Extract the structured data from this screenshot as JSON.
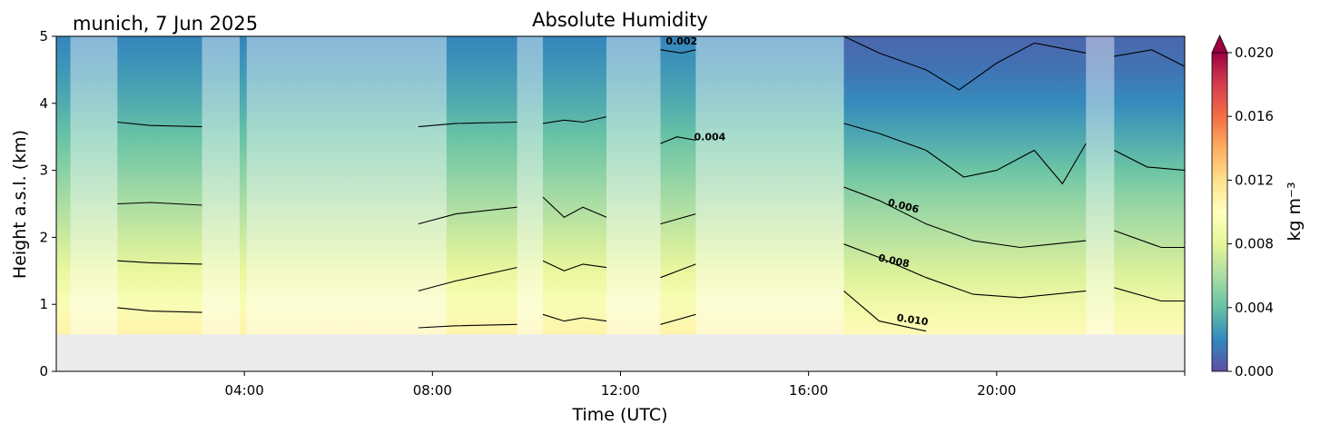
{
  "header": {
    "location_date": "munich, 7 Jun 2025"
  },
  "chart_data": {
    "type": "heatmap",
    "title": "Absolute Humidity",
    "xlabel": "Time (UTC)",
    "ylabel": "Height a.s.l. (km)",
    "xlim_hours": [
      0,
      24
    ],
    "ylim_km": [
      0,
      5
    ],
    "x_ticks": [
      {
        "hour": 4,
        "label": "04:00"
      },
      {
        "hour": 8,
        "label": "08:00"
      },
      {
        "hour": 12,
        "label": "12:00"
      },
      {
        "hour": 16,
        "label": "16:00"
      },
      {
        "hour": 20,
        "label": "20:00"
      }
    ],
    "y_ticks": [
      {
        "value": 0,
        "label": "0"
      },
      {
        "value": 1,
        "label": "1"
      },
      {
        "value": 2,
        "label": "2"
      },
      {
        "value": 3,
        "label": "3"
      },
      {
        "value": 4,
        "label": "4"
      },
      {
        "value": 5,
        "label": "5"
      }
    ],
    "data_bottom_km": 0.55,
    "no_data_color": "#ebebeb",
    "colorbar": {
      "label": "kg m⁻³",
      "min": 0.0,
      "max": 0.02,
      "extend": "max",
      "ticks": [
        {
          "value": 0.0,
          "label": "0.000"
        },
        {
          "value": 0.004,
          "label": "0.004"
        },
        {
          "value": 0.008,
          "label": "0.008"
        },
        {
          "value": 0.012,
          "label": "0.012"
        },
        {
          "value": 0.016,
          "label": "0.016"
        },
        {
          "value": 0.02,
          "label": "0.020"
        }
      ],
      "colormap": "Spectral_r",
      "colors": [
        "#5e4fa2",
        "#3288bd",
        "#66c2a5",
        "#abdda4",
        "#e6f598",
        "#ffffbf",
        "#fee08b",
        "#fdae61",
        "#f46d43",
        "#d53e4f",
        "#9e0142"
      ],
      "over_color": "#9e0142"
    },
    "humidity_profile_kgm3": {
      "heights_km": [
        0.55,
        1.0,
        1.5,
        2.0,
        2.5,
        3.0,
        3.5,
        4.0,
        4.5,
        5.0
      ],
      "clear_period": [
        0.0108,
        0.0095,
        0.0083,
        0.0071,
        0.006,
        0.005,
        0.0041,
        0.0032,
        0.0025,
        0.0019
      ],
      "evening": [
        0.0103,
        0.0088,
        0.0076,
        0.0064,
        0.0054,
        0.0042,
        0.0031,
        0.0021,
        0.0013,
        0.0008
      ]
    },
    "shaded_periods_hours": [
      [
        0.3,
        1.3
      ],
      [
        3.1,
        3.9
      ],
      [
        4.05,
        8.3
      ],
      [
        9.8,
        10.35
      ],
      [
        11.7,
        12.85
      ],
      [
        13.6,
        16.75
      ],
      [
        21.9,
        22.5
      ]
    ],
    "contour_levels": [
      {
        "value": 0.002,
        "label": "0.002"
      },
      {
        "value": 0.004,
        "label": "0.004"
      },
      {
        "value": 0.006,
        "label": "0.006"
      },
      {
        "value": 0.008,
        "label": "0.008"
      },
      {
        "value": 0.01,
        "label": "0.010"
      }
    ],
    "contour_lines": [
      {
        "level": 0.004,
        "points": [
          [
            1.3,
            3.72
          ],
          [
            2.0,
            3.67
          ],
          [
            3.1,
            3.65
          ]
        ]
      },
      {
        "level": 0.004,
        "points": [
          [
            7.7,
            3.65
          ],
          [
            8.5,
            3.7
          ],
          [
            9.8,
            3.72
          ]
        ]
      },
      {
        "level": 0.004,
        "points": [
          [
            10.35,
            3.7
          ],
          [
            10.8,
            3.75
          ],
          [
            11.2,
            3.72
          ],
          [
            11.7,
            3.8
          ]
        ]
      },
      {
        "level": 0.004,
        "points": [
          [
            12.85,
            3.4
          ],
          [
            13.2,
            3.5
          ],
          [
            13.6,
            3.45
          ]
        ]
      },
      {
        "level": 0.004,
        "points": [
          [
            16.75,
            3.7
          ],
          [
            17.5,
            3.55
          ],
          [
            18.5,
            3.3
          ],
          [
            19.3,
            2.9
          ],
          [
            20.0,
            3.0
          ],
          [
            20.8,
            3.3
          ],
          [
            21.4,
            2.8
          ],
          [
            21.9,
            3.4
          ]
        ]
      },
      {
        "level": 0.004,
        "points": [
          [
            22.5,
            3.3
          ],
          [
            23.2,
            3.05
          ],
          [
            24.0,
            3.0
          ]
        ]
      },
      {
        "level": 0.006,
        "points": [
          [
            1.3,
            2.5
          ],
          [
            2.0,
            2.52
          ],
          [
            3.1,
            2.48
          ]
        ]
      },
      {
        "level": 0.006,
        "points": [
          [
            7.7,
            2.2
          ],
          [
            8.5,
            2.35
          ],
          [
            9.8,
            2.45
          ]
        ]
      },
      {
        "level": 0.006,
        "points": [
          [
            10.35,
            2.6
          ],
          [
            10.8,
            2.3
          ],
          [
            11.2,
            2.45
          ],
          [
            11.7,
            2.3
          ]
        ]
      },
      {
        "level": 0.006,
        "points": [
          [
            12.85,
            2.2
          ],
          [
            13.6,
            2.35
          ]
        ]
      },
      {
        "level": 0.006,
        "points": [
          [
            16.75,
            2.75
          ],
          [
            17.5,
            2.55
          ],
          [
            18.5,
            2.2
          ],
          [
            19.5,
            1.95
          ],
          [
            20.5,
            1.85
          ],
          [
            21.9,
            1.95
          ]
        ]
      },
      {
        "level": 0.006,
        "points": [
          [
            22.5,
            2.1
          ],
          [
            23.5,
            1.85
          ],
          [
            24.0,
            1.85
          ]
        ]
      },
      {
        "level": 0.008,
        "points": [
          [
            1.3,
            1.65
          ],
          [
            2.0,
            1.62
          ],
          [
            3.1,
            1.6
          ]
        ]
      },
      {
        "level": 0.008,
        "points": [
          [
            7.7,
            1.2
          ],
          [
            8.5,
            1.35
          ],
          [
            9.8,
            1.55
          ]
        ]
      },
      {
        "level": 0.008,
        "points": [
          [
            10.35,
            1.65
          ],
          [
            10.8,
            1.5
          ],
          [
            11.2,
            1.6
          ],
          [
            11.7,
            1.55
          ]
        ]
      },
      {
        "level": 0.008,
        "points": [
          [
            12.85,
            1.4
          ],
          [
            13.6,
            1.6
          ]
        ]
      },
      {
        "level": 0.008,
        "points": [
          [
            16.75,
            1.9
          ],
          [
            17.5,
            1.7
          ],
          [
            18.5,
            1.4
          ],
          [
            19.5,
            1.15
          ],
          [
            20.5,
            1.1
          ],
          [
            21.9,
            1.2
          ]
        ]
      },
      {
        "level": 0.008,
        "points": [
          [
            22.5,
            1.25
          ],
          [
            23.5,
            1.05
          ],
          [
            24.0,
            1.05
          ]
        ]
      },
      {
        "level": 0.01,
        "points": [
          [
            1.3,
            0.95
          ],
          [
            2.0,
            0.9
          ],
          [
            3.1,
            0.88
          ]
        ]
      },
      {
        "level": 0.01,
        "points": [
          [
            7.7,
            0.65
          ],
          [
            8.5,
            0.68
          ],
          [
            9.8,
            0.7
          ]
        ]
      },
      {
        "level": 0.01,
        "points": [
          [
            10.35,
            0.85
          ],
          [
            10.8,
            0.75
          ],
          [
            11.2,
            0.8
          ],
          [
            11.7,
            0.75
          ]
        ]
      },
      {
        "level": 0.01,
        "points": [
          [
            12.85,
            0.7
          ],
          [
            13.6,
            0.85
          ]
        ]
      },
      {
        "level": 0.01,
        "points": [
          [
            16.75,
            1.2
          ],
          [
            17.5,
            0.75
          ],
          [
            18.5,
            0.6
          ]
        ]
      },
      {
        "level": 0.002,
        "points": [
          [
            12.85,
            4.8
          ],
          [
            13.3,
            4.75
          ],
          [
            13.6,
            4.8
          ]
        ]
      },
      {
        "level": 0.002,
        "points": [
          [
            16.75,
            5.0
          ],
          [
            17.5,
            4.75
          ],
          [
            18.5,
            4.5
          ],
          [
            19.2,
            4.2
          ],
          [
            20.0,
            4.6
          ],
          [
            20.8,
            4.9
          ],
          [
            21.9,
            4.75
          ]
        ]
      },
      {
        "level": 0.002,
        "points": [
          [
            22.5,
            4.7
          ],
          [
            23.3,
            4.8
          ],
          [
            24.0,
            4.55
          ]
        ]
      }
    ],
    "contour_labels": [
      {
        "text": "0.002",
        "x": 13.3,
        "y": 4.88,
        "angle": 0
      },
      {
        "text": "0.004",
        "x": 13.9,
        "y": 3.45,
        "angle": 0
      },
      {
        "text": "0.006",
        "x": 18.0,
        "y": 2.42,
        "angle": 14
      },
      {
        "text": "0.008",
        "x": 17.8,
        "y": 1.6,
        "angle": 12
      },
      {
        "text": "0.010",
        "x": 18.2,
        "y": 0.72,
        "angle": 8
      }
    ]
  }
}
